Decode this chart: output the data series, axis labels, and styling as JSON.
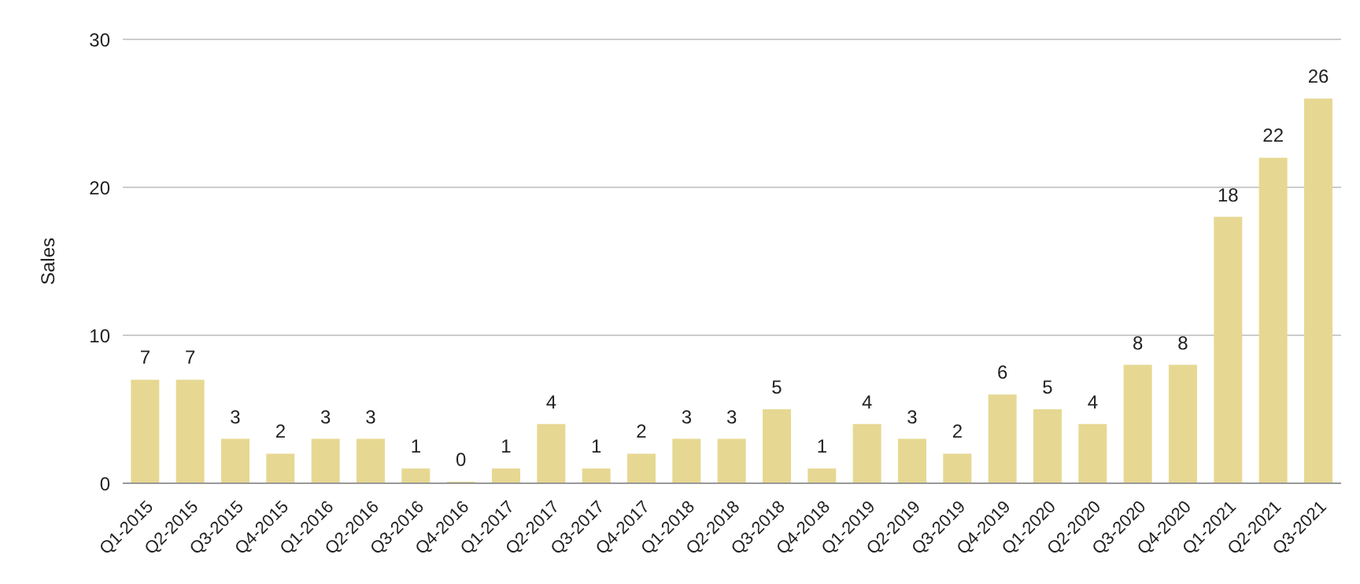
{
  "chart_data": {
    "type": "bar",
    "ylabel": "Sales",
    "categories": [
      "Q1-2015",
      "Q2-2015",
      "Q3-2015",
      "Q4-2015",
      "Q1-2016",
      "Q2-2016",
      "Q3-2016",
      "Q4-2016",
      "Q1-2017",
      "Q2-2017",
      "Q3-2017",
      "Q4-2017",
      "Q1-2018",
      "Q2-2018",
      "Q3-2018",
      "Q4-2018",
      "Q1-2019",
      "Q2-2019",
      "Q3-2019",
      "Q4-2019",
      "Q1-2020",
      "Q2-2020",
      "Q3-2020",
      "Q4-2020",
      "Q1-2021",
      "Q2-2021",
      "Q3-2021"
    ],
    "values": [
      7,
      7,
      3,
      2,
      3,
      3,
      1,
      0,
      1,
      4,
      1,
      2,
      3,
      3,
      5,
      1,
      4,
      3,
      2,
      6,
      5,
      4,
      8,
      8,
      18,
      22,
      26
    ],
    "color": "#e6d892",
    "ylim": [
      0,
      30
    ],
    "yticks": [
      0,
      10,
      20,
      30
    ],
    "grid": "y",
    "data_labels": true
  }
}
